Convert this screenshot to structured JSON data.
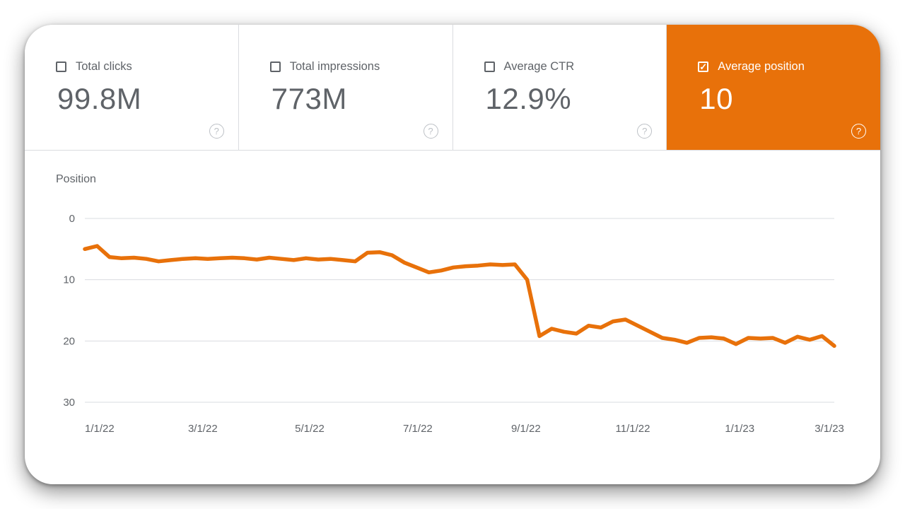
{
  "cards": [
    {
      "label": "Total clicks",
      "value": "99.8M",
      "checked": false,
      "selected": false
    },
    {
      "label": "Total impressions",
      "value": "773M",
      "checked": false,
      "selected": false
    },
    {
      "label": "Average CTR",
      "value": "12.9%",
      "checked": false,
      "selected": false
    },
    {
      "label": "Average position",
      "value": "10",
      "checked": true,
      "selected": true
    }
  ],
  "icons": {
    "help": "?",
    "check": "✓"
  },
  "colors": {
    "accent_orange": "#e8710a",
    "grid": "#dadce0",
    "axis_text": "#5f6368",
    "metric_text": "#5f6368",
    "divider": "#dadce0"
  },
  "chart_data": {
    "type": "line",
    "title": "Position",
    "xlabel": "",
    "ylabel": "Position",
    "y_inverted": true,
    "ylim": [
      0,
      30
    ],
    "y_ticks": [
      0,
      10,
      20,
      30
    ],
    "grid": "horizontal",
    "legend": "none",
    "x_tick_labels": [
      "1/1/22",
      "3/1/22",
      "5/1/22",
      "7/1/22",
      "9/1/22",
      "11/1/22",
      "1/1/23",
      "3/1/23"
    ],
    "x_tick_positions": [
      1.2,
      9.6,
      18.3,
      27.1,
      35.9,
      44.6,
      53.3,
      60.6
    ],
    "series": [
      {
        "name": "Average position",
        "color": "#e8710a",
        "values": [
          5.0,
          4.5,
          6.3,
          6.5,
          6.4,
          6.6,
          7.0,
          6.8,
          6.6,
          6.5,
          6.6,
          6.5,
          6.4,
          6.5,
          6.7,
          6.4,
          6.6,
          6.8,
          6.5,
          6.7,
          6.6,
          6.8,
          7.0,
          5.6,
          5.5,
          6.0,
          7.2,
          8.0,
          8.8,
          8.5,
          8.0,
          7.8,
          7.7,
          7.5,
          7.6,
          7.5,
          10.0,
          19.2,
          18.0,
          18.5,
          18.8,
          17.5,
          17.8,
          16.8,
          16.5,
          17.5,
          18.5,
          19.5,
          19.8,
          20.3,
          19.5,
          19.4,
          19.6,
          20.5,
          19.5,
          19.6,
          19.5,
          20.3,
          19.3,
          19.8,
          19.2,
          20.8
        ]
      }
    ]
  }
}
